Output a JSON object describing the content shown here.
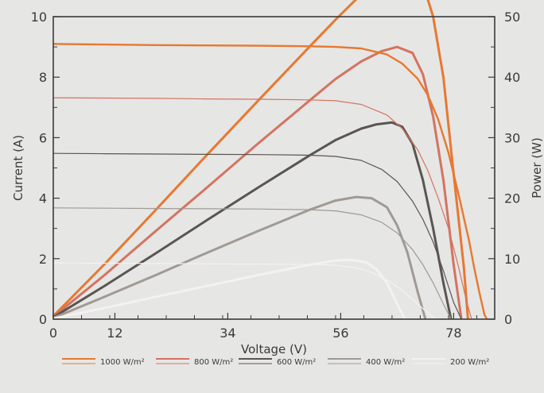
{
  "chart_data": {
    "type": "line",
    "xlabel": "Voltage (V)",
    "ylabel": "Current (A)",
    "y2label": "Power (W)",
    "xticks": [
      0,
      12,
      34,
      56,
      78
    ],
    "xlim": [
      0,
      86
    ],
    "ylim": [
      0,
      10
    ],
    "yticks": [
      0,
      2,
      4,
      6,
      8,
      10
    ],
    "y2lim": [
      0,
      50
    ],
    "y2ticks": [
      0,
      10,
      20,
      30,
      40,
      50
    ],
    "grid": false,
    "legend_position": "bottom",
    "series": [
      {
        "name": "1000 W/m²",
        "color": "#e8782f",
        "current": {
          "x": [
            0,
            10,
            20,
            30,
            40,
            50,
            55,
            60,
            65,
            68,
            71,
            73,
            75,
            77,
            79,
            81,
            82,
            83,
            84,
            84.5
          ],
          "y": [
            9.1,
            9.08,
            9.06,
            9.05,
            9.04,
            9.02,
            9.0,
            8.95,
            8.75,
            8.45,
            7.95,
            7.4,
            6.6,
            5.5,
            4.1,
            2.6,
            1.7,
            0.9,
            0.15,
            0
          ]
        },
        "power": {
          "x": [
            0,
            10,
            20,
            30,
            40,
            50,
            55,
            60,
            63,
            66,
            68,
            70,
            72,
            74,
            76,
            78,
            80,
            80.8
          ],
          "y": [
            0.5,
            9.1,
            18.1,
            27.2,
            36.2,
            45.1,
            49.5,
            53.7,
            56.0,
            57.8,
            58.3,
            57.9,
            55.5,
            50.0,
            40.0,
            24.0,
            8.5,
            0
          ]
        }
      },
      {
        "name": "800 W/m²",
        "color": "#d4735f",
        "current": {
          "x": [
            0,
            10,
            20,
            30,
            40,
            50,
            55,
            60,
            65,
            68,
            71,
            73,
            75,
            77,
            79,
            80.5,
            81.5
          ],
          "y": [
            7.32,
            7.31,
            7.3,
            7.28,
            7.27,
            7.25,
            7.22,
            7.1,
            6.75,
            6.3,
            5.6,
            4.9,
            4.0,
            3.0,
            1.7,
            0.6,
            0
          ]
        },
        "power": {
          "x": [
            0,
            10,
            20,
            30,
            40,
            50,
            55,
            60,
            64,
            67,
            70,
            72,
            74,
            76,
            78,
            79.5
          ],
          "y": [
            0.4,
            7.3,
            14.6,
            21.8,
            29.1,
            36.2,
            39.7,
            42.6,
            44.3,
            45.0,
            44.0,
            40.5,
            33.5,
            23.0,
            9.0,
            0
          ]
        }
      },
      {
        "name": "600 W/m²",
        "color": "#5a5550",
        "current": {
          "x": [
            0,
            10,
            20,
            30,
            40,
            50,
            55,
            60,
            64,
            67,
            70,
            72,
            74,
            76,
            78,
            79.5
          ],
          "y": [
            5.48,
            5.47,
            5.46,
            5.45,
            5.44,
            5.42,
            5.38,
            5.25,
            4.95,
            4.55,
            3.9,
            3.3,
            2.55,
            1.6,
            0.55,
            0
          ]
        },
        "power": {
          "x": [
            0,
            10,
            20,
            30,
            40,
            50,
            55,
            60,
            63,
            66,
            68,
            70,
            72,
            74,
            76,
            77.5
          ],
          "y": [
            0.3,
            5.5,
            10.9,
            16.4,
            21.8,
            27.1,
            29.6,
            31.5,
            32.2,
            32.5,
            31.8,
            29.0,
            23.0,
            15.0,
            6.0,
            0
          ]
        }
      },
      {
        "name": "400 W/m²",
        "color": "#a09a94",
        "current": {
          "x": [
            0,
            10,
            20,
            30,
            40,
            50,
            55,
            60,
            64,
            67,
            70,
            72,
            74,
            76,
            77.5
          ],
          "y": [
            3.68,
            3.67,
            3.66,
            3.65,
            3.64,
            3.62,
            3.58,
            3.45,
            3.2,
            2.85,
            2.3,
            1.8,
            1.2,
            0.5,
            0
          ]
        },
        "power": {
          "x": [
            0,
            10,
            20,
            30,
            40,
            50,
            55,
            59,
            62,
            65,
            67,
            69,
            71,
            72.5
          ],
          "y": [
            0.2,
            3.7,
            7.3,
            11.0,
            14.6,
            18.1,
            19.6,
            20.2,
            20.0,
            18.5,
            15.5,
            11.0,
            4.5,
            0
          ]
        }
      },
      {
        "name": "200 W/m²",
        "color": "#f4f2f0",
        "current": {
          "x": [
            0,
            10,
            20,
            30,
            40,
            50,
            55,
            59,
            62,
            65,
            68,
            71,
            73,
            74.5
          ],
          "y": [
            1.86,
            1.85,
            1.84,
            1.83,
            1.82,
            1.81,
            1.78,
            1.7,
            1.55,
            1.3,
            0.95,
            0.5,
            0.2,
            0
          ]
        },
        "power": {
          "x": [
            0,
            10,
            20,
            30,
            40,
            50,
            55,
            58,
            61,
            63,
            65,
            67,
            68.5
          ],
          "y": [
            0.1,
            1.85,
            3.7,
            5.5,
            7.3,
            9.0,
            9.7,
            9.8,
            9.4,
            8.2,
            6.0,
            2.5,
            0
          ]
        }
      }
    ]
  }
}
